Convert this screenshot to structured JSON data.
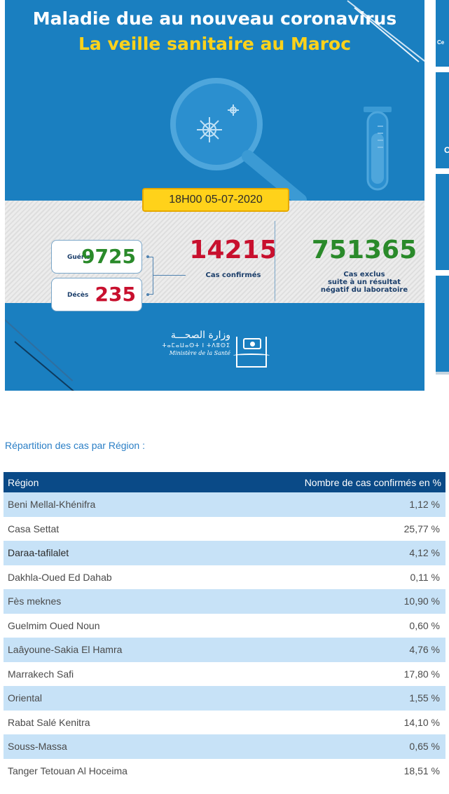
{
  "banner": {
    "title_line1": "Maladie due au nouveau coronavirus",
    "title_line2": "La veille sanitaire au Maroc",
    "date": "18H00  05-07-2020",
    "gueris_label": "Guéris",
    "gueris_value": "9725",
    "deces_label": "Décès",
    "deces_value": "235",
    "confirmed_value": "14215",
    "confirmed_label": "Cas confirmés",
    "excluded_value": "751365",
    "excluded_label_1": "Cas exclus",
    "excluded_label_2": "suite à un résultat",
    "excluded_label_3": "négatif du laboratoire",
    "ministry_ar": "وزارة الصحـــة",
    "ministry_tif": "ⵜⴰⵎⴰⵡⴰⵙⵜ ⵏ ⵜⴷⵓⵙⵉ",
    "ministry_fr": "Ministère de la Santé",
    "colors": {
      "blue": "#1a7fc0",
      "yellow": "#ffd21a",
      "red": "#c8102e",
      "green": "#2a8a2a"
    }
  },
  "side_cards": {
    "c1": "Ce",
    "c2": "C"
  },
  "regions_section": {
    "title": "Répartition des cas par Région :",
    "headers": {
      "region": "Région",
      "percent": "Nombre de cas confirmés en %"
    },
    "rows": [
      {
        "name": "Beni Mellal-Khénifra",
        "value": "1,12 %"
      },
      {
        "name": "Casa Settat",
        "value": "25,77 %"
      },
      {
        "name": "Daraa-tafilalet",
        "value": "4,12 %"
      },
      {
        "name": "Dakhla-Oued Ed Dahab",
        "value": "0,11 %"
      },
      {
        "name": "Fès meknes",
        "value": "10,90 %"
      },
      {
        "name": "Guelmim Oued Noun",
        "value": "0,60 %"
      },
      {
        "name": "Laâyoune-Sakia El Hamra",
        "value": "4,76 %"
      },
      {
        "name": "Marrakech Safi",
        "value": "17,80 %"
      },
      {
        "name": "Oriental",
        "value": "1,55 %"
      },
      {
        "name": "Rabat Salé Kenitra",
        "value": "14,10 %"
      },
      {
        "name": "Souss-Massa",
        "value": "0,65 %"
      },
      {
        "name": "Tanger Tetouan Al Hoceima",
        "value": "18,51 %"
      }
    ]
  }
}
